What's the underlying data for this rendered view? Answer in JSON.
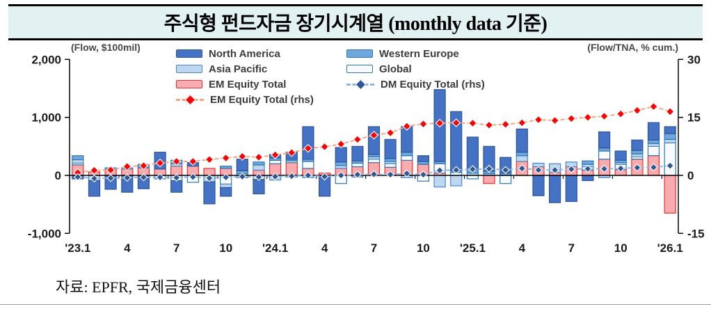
{
  "header": {
    "title": "주식형 펀드자금 장기시계열 (monthly data 기준)"
  },
  "footer": {
    "source": "자료: EPFR,  국제금융센터"
  },
  "legend": {
    "items": [
      {
        "label": "North America",
        "series": "na"
      },
      {
        "label": "Asia Pacific",
        "series": "ap"
      },
      {
        "label": "EM Equity Total",
        "series": "em"
      },
      {
        "label": "EM Equity Total (rhs)",
        "series": "em_rhs"
      },
      {
        "label": "Western Europe",
        "series": "we"
      },
      {
        "label": "Global",
        "series": "gl"
      },
      {
        "label": "DM Equity Total (rhs)",
        "series": "dm_rhs"
      }
    ]
  },
  "colors": {
    "title_bar_bg": "#E2F1F1",
    "north_america": "#4472C4",
    "western_europe": "#6FA8DC",
    "asia_pacific": "#BDD7EE",
    "global": "#F8FBFE",
    "em_equity": "#F9ACB0",
    "em_line": "#FF0000",
    "dm_line": "#2F5597"
  },
  "chart_data": {
    "type": "bar",
    "subtype": "stacked bars with two cumulative lines",
    "n_months": 37,
    "left_axis": {
      "unit": "(Flow, $100mil)",
      "range": [
        -1000,
        2000
      ],
      "ticks": [
        {
          "value": 2000,
          "label": "2,000"
        },
        {
          "value": 1000,
          "label": "1,000"
        },
        {
          "value": 0,
          "label": "0"
        },
        {
          "value": -1000,
          "label": "-1,000"
        }
      ]
    },
    "right_axis": {
      "unit": "(Flow/TNA, % cum.)",
      "range": [
        -15,
        30
      ],
      "ticks": [
        {
          "value": 30,
          "label": "30"
        },
        {
          "value": 15,
          "label": "15"
        },
        {
          "value": 0,
          "label": "0"
        },
        {
          "value": -15,
          "label": "-15"
        }
      ]
    },
    "x_ticks": [
      {
        "month_index": 0,
        "label": "'23.1"
      },
      {
        "month_index": 3,
        "label": "4"
      },
      {
        "month_index": 6,
        "label": "7"
      },
      {
        "month_index": 9,
        "label": "10"
      },
      {
        "month_index": 12,
        "label": "'24.1"
      },
      {
        "month_index": 15,
        "label": "4"
      },
      {
        "month_index": 18,
        "label": "7"
      },
      {
        "month_index": 21,
        "label": "10"
      },
      {
        "month_index": 24,
        "label": "'25.1"
      },
      {
        "month_index": 27,
        "label": "4"
      },
      {
        "month_index": 30,
        "label": "7"
      },
      {
        "month_index": 33,
        "label": "10"
      },
      {
        "month_index": 36,
        "label": "'26.1"
      }
    ],
    "stack_order": [
      "em",
      "gl",
      "ap",
      "we",
      "na"
    ],
    "bar_series": [
      {
        "name": "North America",
        "key": "na",
        "fill": "#4472C4",
        "stroke": "#2F5597",
        "values": [
          -60,
          -270,
          -240,
          -290,
          -230,
          290,
          -200,
          60,
          -380,
          -150,
          200,
          -250,
          60,
          120,
          560,
          -360,
          250,
          250,
          480,
          330,
          440,
          100,
          1240,
          1020,
          560,
          430,
          270,
          400,
          -350,
          -470,
          -450,
          -90,
          280,
          160,
          180,
          300,
          120
        ]
      },
      {
        "name": "Western Europe",
        "key": "we",
        "fill": "#6FA8DC",
        "stroke": "#2E75B6",
        "values": [
          70,
          0,
          30,
          0,
          60,
          0,
          60,
          0,
          0,
          40,
          50,
          50,
          40,
          30,
          40,
          0,
          60,
          40,
          40,
          50,
          60,
          50,
          40,
          30,
          60,
          40,
          40,
          60,
          0,
          0,
          0,
          60,
          50,
          40,
          60,
          60,
          100
        ]
      },
      {
        "name": "Asia Pacific",
        "key": "ap",
        "fill": "#BDD7EE",
        "stroke": "#4A86C8",
        "values": [
          60,
          -90,
          0,
          0,
          0,
          0,
          40,
          0,
          -110,
          -60,
          30,
          90,
          -80,
          -30,
          -40,
          0,
          50,
          -30,
          40,
          40,
          -40,
          0,
          -200,
          -180,
          40,
          30,
          0,
          100,
          60,
          150,
          80,
          40,
          -40,
          30,
          50,
          50,
          60
        ]
      },
      {
        "name": "Global",
        "key": "gl",
        "fill": "#F8FBFE",
        "stroke": "#2E75B6",
        "values": [
          30,
          0,
          0,
          20,
          0,
          -60,
          -90,
          -120,
          0,
          -150,
          -40,
          -70,
          60,
          30,
          120,
          0,
          -140,
          60,
          60,
          60,
          80,
          -100,
          160,
          50,
          -60,
          0,
          -140,
          0,
          0,
          0,
          0,
          60,
          140,
          90,
          40,
          160,
          560
        ]
      },
      {
        "name": "EM Equity Total",
        "key": "em",
        "fill": "#F9ACB0",
        "stroke": "#F22B2B",
        "values": [
          180,
          60,
          100,
          110,
          130,
          110,
          160,
          160,
          120,
          120,
          0,
          90,
          200,
          220,
          120,
          40,
          120,
          150,
          220,
          140,
          260,
          190,
          40,
          0,
          0,
          -140,
          0,
          240,
          150,
          50,
          150,
          90,
          280,
          100,
          280,
          340,
          -650
        ]
      }
    ],
    "line_series": [
      {
        "name": "EM Equity Total (rhs)",
        "key": "em_rhs",
        "axis": "right",
        "line": "#F4A582",
        "diamond": "#FF0000",
        "values": [
          0.7,
          1.3,
          1.4,
          2.3,
          2.5,
          3.2,
          3.6,
          3.6,
          4.1,
          4.5,
          4.9,
          4.7,
          5.3,
          5.9,
          7.0,
          7.4,
          8.1,
          9.3,
          10.4,
          11.0,
          12.7,
          13.3,
          13.5,
          13.6,
          13.5,
          13.0,
          13.2,
          13.6,
          14.4,
          14.2,
          14.7,
          15.0,
          15.3,
          15.9,
          16.8,
          17.8,
          16.5
        ]
      },
      {
        "name": "DM Equity Total (rhs)",
        "key": "dm_rhs",
        "axis": "right",
        "line": "#8FB4E3",
        "diamond": "#2F5597",
        "values": [
          -0.4,
          -0.8,
          -0.7,
          -0.6,
          -0.5,
          -0.5,
          -0.6,
          -0.4,
          -0.7,
          -0.5,
          -0.3,
          -0.4,
          -0.3,
          -0.2,
          0.0,
          -0.3,
          0.0,
          0.2,
          0.3,
          0.2,
          0.5,
          0.2,
          1.3,
          1.4,
          1.6,
          1.7,
          1.4,
          1.8,
          1.4,
          1.4,
          1.6,
          1.7,
          1.7,
          1.8,
          2.0,
          2.1,
          2.5
        ]
      }
    ]
  }
}
